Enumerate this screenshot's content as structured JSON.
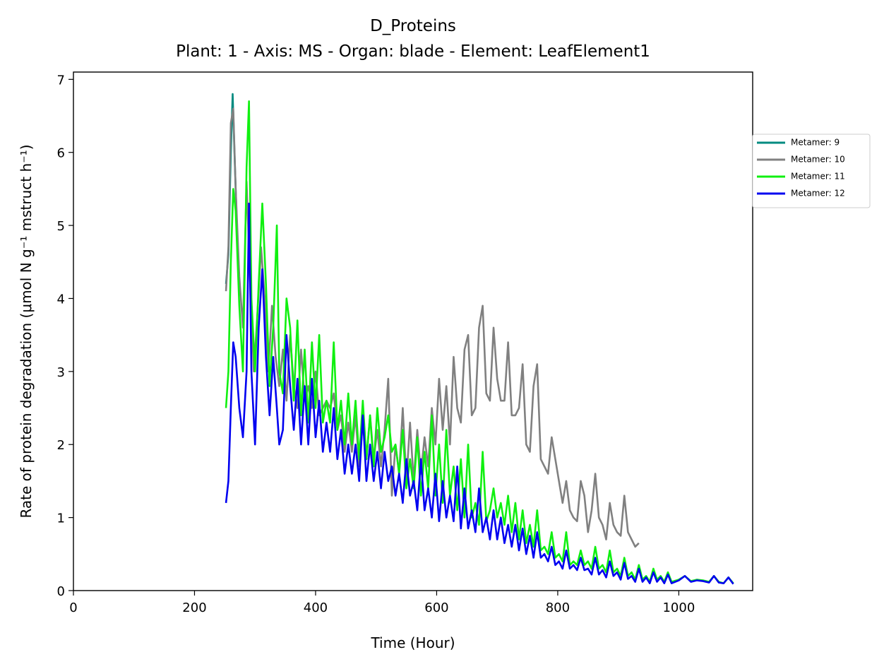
{
  "chart_data": {
    "type": "line",
    "title": "D_Proteins",
    "subtitle": "Plant: 1 - Axis: MS - Organ: blade - Element: LeafElement1",
    "x_label": "Time (Hour)",
    "y_label": "Rate of protein degradation (μmol N g⁻¹ mstruct h⁻¹)",
    "xlim": [
      0,
      1122
    ],
    "ylim": [
      0,
      7.1
    ],
    "xticks": [
      0,
      200,
      400,
      600,
      800,
      1000
    ],
    "yticks": [
      0,
      1,
      2,
      3,
      4,
      5,
      6,
      7
    ],
    "grid": false,
    "legend": "outside right",
    "series": [
      {
        "name": "Metamer: 9",
        "color": "#008b80",
        "x": [
          252,
          256,
          260,
          263,
          266,
          270
        ],
        "values": [
          4.2,
          4.6,
          6.0,
          6.8,
          6.0,
          5.0
        ]
      },
      {
        "name": "Metamer: 10",
        "color": "#808080",
        "x": [
          252,
          256,
          260,
          264,
          268,
          274,
          280,
          286,
          292,
          298,
          304,
          310,
          316,
          322,
          328,
          334,
          340,
          346,
          352,
          358,
          364,
          370,
          376,
          382,
          388,
          394,
          400,
          406,
          412,
          418,
          424,
          430,
          436,
          442,
          448,
          454,
          460,
          466,
          472,
          478,
          484,
          490,
          496,
          502,
          508,
          514,
          520,
          526,
          532,
          538,
          544,
          550,
          556,
          562,
          568,
          574,
          580,
          586,
          592,
          598,
          604,
          610,
          616,
          622,
          628,
          634,
          640,
          646,
          652,
          658,
          664,
          670,
          676,
          682,
          688,
          694,
          700,
          706,
          712,
          718,
          724,
          730,
          736,
          742,
          748,
          754,
          760,
          766,
          772,
          778,
          784,
          790,
          796,
          802,
          808,
          814,
          820,
          826,
          832,
          838,
          844,
          850,
          856,
          862,
          868,
          874,
          880,
          886,
          892,
          898,
          904,
          910,
          916,
          922,
          928,
          934
        ],
        "values": [
          4.1,
          4.7,
          6.4,
          6.6,
          5.5,
          4.3,
          3.6,
          5.6,
          4.2,
          3.0,
          3.8,
          4.7,
          4.0,
          3.0,
          3.9,
          3.2,
          2.8,
          3.3,
          2.6,
          3.5,
          2.8,
          2.5,
          3.3,
          2.6,
          2.8,
          2.5,
          3.0,
          2.4,
          2.5,
          2.6,
          2.5,
          2.7,
          2.2,
          2.4,
          1.9,
          2.3,
          1.9,
          2.4,
          1.7,
          2.3,
          1.8,
          2.4,
          1.8,
          2.2,
          1.7,
          2.2,
          2.9,
          1.3,
          2.0,
          1.6,
          2.5,
          1.5,
          2.3,
          1.5,
          2.2,
          1.6,
          2.1,
          1.7,
          2.5,
          2.0,
          2.9,
          2.2,
          2.8,
          2.0,
          3.2,
          2.5,
          2.3,
          3.3,
          3.5,
          2.4,
          2.5,
          3.6,
          3.9,
          2.7,
          2.6,
          3.6,
          2.9,
          2.6,
          2.6,
          3.4,
          2.4,
          2.4,
          2.5,
          3.1,
          2.0,
          1.9,
          2.8,
          3.1,
          1.8,
          1.7,
          1.6,
          2.1,
          1.8,
          1.5,
          1.2,
          1.5,
          1.1,
          1.0,
          0.95,
          1.5,
          1.3,
          0.8,
          1.1,
          1.6,
          1.0,
          0.9,
          0.7,
          1.2,
          0.9,
          0.8,
          0.75,
          1.3,
          0.8,
          0.7,
          0.6,
          0.65
        ]
      },
      {
        "name": "Metamer: 11",
        "color": "#10f010",
        "x": [
          252,
          256,
          260,
          264,
          268,
          274,
          280,
          286,
          290,
          294,
          300,
          306,
          312,
          318,
          324,
          330,
          336,
          340,
          346,
          352,
          358,
          364,
          370,
          376,
          382,
          388,
          394,
          400,
          406,
          412,
          418,
          424,
          430,
          436,
          442,
          448,
          454,
          460,
          466,
          472,
          478,
          484,
          490,
          496,
          502,
          508,
          514,
          520,
          526,
          532,
          538,
          544,
          550,
          556,
          562,
          568,
          574,
          580,
          586,
          592,
          598,
          604,
          610,
          616,
          622,
          628,
          634,
          640,
          646,
          652,
          658,
          664,
          670,
          676,
          682,
          688,
          694,
          700,
          706,
          712,
          718,
          724,
          730,
          736,
          742,
          748,
          754,
          760,
          766,
          772,
          778,
          784,
          790,
          796,
          802,
          808,
          814,
          820,
          826,
          832,
          838,
          844,
          850,
          856,
          862,
          868,
          874,
          880,
          886,
          892,
          898,
          904,
          910,
          916,
          922,
          928,
          934,
          940,
          946,
          952,
          958,
          964,
          970,
          976,
          982,
          988,
          1000,
          1010,
          1020,
          1030,
          1040,
          1050,
          1058,
          1066,
          1074,
          1082,
          1090
        ],
        "values": [
          2.5,
          3.0,
          4.5,
          5.5,
          5.2,
          3.9,
          3.0,
          5.8,
          6.7,
          4.0,
          3.0,
          4.2,
          5.3,
          4.2,
          2.8,
          3.6,
          5.0,
          3.0,
          2.7,
          4.0,
          3.6,
          2.6,
          3.7,
          2.4,
          3.3,
          2.3,
          3.4,
          2.5,
          3.5,
          2.3,
          2.6,
          2.3,
          3.4,
          2.2,
          2.6,
          2.0,
          2.7,
          2.0,
          2.6,
          1.8,
          2.6,
          1.8,
          2.4,
          1.7,
          2.5,
          1.9,
          2.1,
          2.4,
          1.9,
          2.0,
          1.6,
          2.2,
          1.4,
          1.8,
          1.4,
          2.1,
          1.3,
          1.9,
          1.4,
          2.4,
          1.3,
          2.0,
          1.2,
          2.2,
          1.3,
          1.7,
          1.1,
          1.8,
          1.0,
          2.0,
          1.0,
          1.2,
          0.9,
          1.9,
          0.95,
          1.1,
          1.4,
          1.0,
          1.2,
          0.9,
          1.3,
          0.8,
          1.2,
          0.7,
          1.1,
          0.65,
          0.9,
          0.6,
          1.1,
          0.55,
          0.6,
          0.5,
          0.8,
          0.45,
          0.5,
          0.4,
          0.8,
          0.35,
          0.4,
          0.35,
          0.55,
          0.35,
          0.4,
          0.3,
          0.6,
          0.3,
          0.35,
          0.25,
          0.55,
          0.25,
          0.3,
          0.2,
          0.45,
          0.2,
          0.25,
          0.15,
          0.35,
          0.15,
          0.2,
          0.12,
          0.3,
          0.15,
          0.2,
          0.12,
          0.25,
          0.12,
          0.15,
          0.2,
          0.13,
          0.15,
          0.14,
          0.12,
          0.2,
          0.12,
          0.1,
          0.18,
          0.1
        ]
      },
      {
        "name": "Metamer: 12",
        "color": "#0000f0",
        "x": [
          252,
          256,
          260,
          264,
          268,
          274,
          280,
          286,
          290,
          294,
          300,
          306,
          312,
          318,
          324,
          330,
          336,
          340,
          346,
          352,
          358,
          364,
          370,
          376,
          382,
          388,
          394,
          400,
          406,
          412,
          418,
          424,
          430,
          436,
          442,
          448,
          454,
          460,
          466,
          472,
          478,
          484,
          490,
          496,
          502,
          508,
          514,
          520,
          526,
          532,
          538,
          544,
          550,
          556,
          562,
          568,
          574,
          580,
          586,
          592,
          598,
          604,
          610,
          616,
          622,
          628,
          634,
          640,
          646,
          652,
          658,
          664,
          670,
          676,
          682,
          688,
          694,
          700,
          706,
          712,
          718,
          724,
          730,
          736,
          742,
          748,
          754,
          760,
          766,
          772,
          778,
          784,
          790,
          796,
          802,
          808,
          814,
          820,
          826,
          832,
          838,
          844,
          850,
          856,
          862,
          868,
          874,
          880,
          886,
          892,
          898,
          904,
          910,
          916,
          922,
          928,
          934,
          940,
          946,
          952,
          958,
          964,
          970,
          976,
          982,
          988,
          1000,
          1010,
          1020,
          1030,
          1040,
          1050,
          1058,
          1066,
          1074,
          1082,
          1090
        ],
        "values": [
          1.2,
          1.5,
          2.5,
          3.4,
          3.2,
          2.5,
          2.1,
          3.0,
          5.3,
          3.0,
          2.0,
          3.6,
          4.4,
          3.2,
          2.4,
          3.2,
          2.5,
          2.0,
          2.2,
          3.5,
          2.8,
          2.2,
          2.9,
          2.0,
          2.8,
          2.0,
          2.9,
          2.1,
          2.6,
          1.9,
          2.3,
          1.9,
          2.5,
          1.8,
          2.2,
          1.6,
          2.0,
          1.6,
          2.0,
          1.5,
          2.4,
          1.5,
          2.0,
          1.5,
          1.9,
          1.4,
          1.9,
          1.5,
          1.7,
          1.3,
          1.6,
          1.2,
          1.8,
          1.3,
          1.5,
          1.1,
          1.8,
          1.1,
          1.4,
          1.0,
          1.6,
          0.95,
          1.5,
          1.0,
          1.3,
          0.95,
          1.7,
          0.85,
          1.4,
          0.85,
          1.1,
          0.8,
          1.4,
          0.8,
          1.0,
          0.7,
          1.1,
          0.7,
          1.0,
          0.65,
          0.9,
          0.6,
          0.9,
          0.55,
          0.85,
          0.5,
          0.75,
          0.45,
          0.8,
          0.45,
          0.5,
          0.4,
          0.6,
          0.35,
          0.4,
          0.3,
          0.55,
          0.3,
          0.35,
          0.28,
          0.45,
          0.28,
          0.3,
          0.22,
          0.45,
          0.22,
          0.28,
          0.18,
          0.4,
          0.2,
          0.25,
          0.15,
          0.38,
          0.16,
          0.2,
          0.12,
          0.3,
          0.12,
          0.18,
          0.1,
          0.25,
          0.12,
          0.18,
          0.1,
          0.22,
          0.1,
          0.14,
          0.2,
          0.12,
          0.14,
          0.13,
          0.11,
          0.2,
          0.11,
          0.1,
          0.18,
          0.09
        ]
      }
    ]
  }
}
